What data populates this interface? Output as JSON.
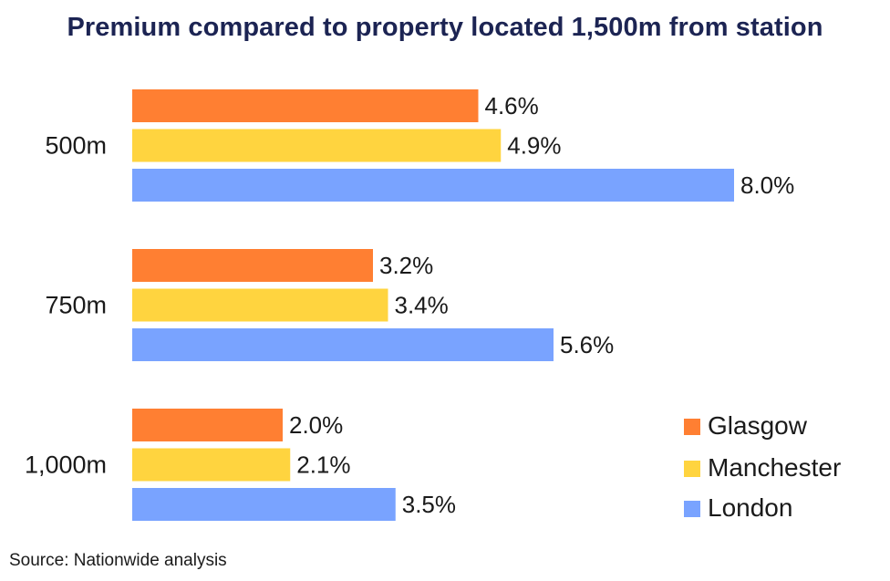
{
  "chart_data": {
    "type": "bar",
    "orientation": "horizontal",
    "title": "Premium compared to property located 1,500m from station",
    "categories": [
      "500m",
      "750m",
      "1,000m"
    ],
    "series": [
      {
        "name": "Glasgow",
        "color": "#ff7f32",
        "values": [
          4.6,
          3.2,
          2.0
        ],
        "labels": [
          "4.6%",
          "3.2%",
          "2.0%"
        ]
      },
      {
        "name": "Manchester",
        "color": "#ffd43f",
        "values": [
          4.9,
          3.4,
          2.1
        ],
        "labels": [
          "4.9%",
          "3.4%",
          "2.1%"
        ]
      },
      {
        "name": "London",
        "color": "#79a3ff",
        "values": [
          8.0,
          5.6,
          3.5
        ],
        "labels": [
          "8.0%",
          "5.6%",
          "3.5%"
        ]
      }
    ],
    "xlim": [
      0,
      8.0
    ],
    "value_format": "percent",
    "legend": "bottom-right",
    "grid": false
  },
  "source": "Source: Nationwide analysis"
}
